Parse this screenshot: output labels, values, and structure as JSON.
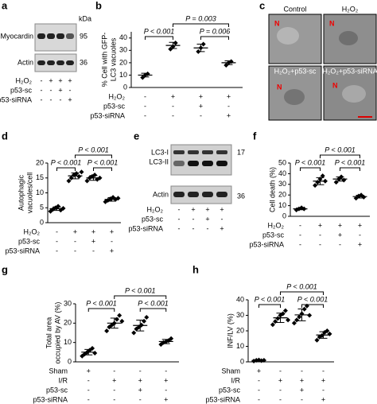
{
  "panel_letters": [
    "a",
    "b",
    "c",
    "d",
    "e",
    "f",
    "g",
    "h"
  ],
  "blots": [
    {
      "bands": [
        "Myocardin",
        "Actin"
      ],
      "unit": "kDa",
      "sizes": [
        95,
        36
      ],
      "treatments": [
        {
          "name": "H₂O₂",
          "marks": [
            "-",
            "+",
            "+",
            "+"
          ]
        },
        {
          "name": "p53-sc",
          "marks": [
            "-",
            "-",
            "+",
            "-"
          ]
        },
        {
          "name": "p53-siRNA",
          "marks": [
            "-",
            "-",
            "-",
            "+"
          ]
        }
      ]
    },
    {
      "bands": [
        "LC3-I",
        "LC3-II",
        "Actin"
      ],
      "sizes": [
        17,
        36
      ],
      "treatments": [
        {
          "name": "H₂O₂",
          "marks": [
            "-",
            "+",
            "+",
            "+"
          ]
        },
        {
          "name": "p53-sc",
          "marks": [
            "-",
            "-",
            "+",
            "-"
          ]
        },
        {
          "name": "p53-siRNA",
          "marks": [
            "-",
            "-",
            "-",
            "+"
          ]
        }
      ]
    }
  ],
  "micrographs": {
    "titles": [
      "Control",
      "H₂O₂",
      "H₂O₂+p53-sc",
      "H₂O₂+p53-siRNA"
    ],
    "nucleus_marks": [
      "N",
      "N",
      "N",
      "N"
    ]
  },
  "chart_data": [
    {
      "type": "dot",
      "ylabel": [
        "% Cell with GFP-",
        "LC3 vacuoles"
      ],
      "ylim": [
        0,
        45
      ],
      "yticks": [
        0,
        10,
        20,
        30,
        40
      ],
      "groups": [
        {
          "points": [
            8,
            10,
            11
          ],
          "mean": 10,
          "sd": 1.5
        },
        {
          "points": [
            31,
            33,
            36
          ],
          "mean": 34,
          "sd": 2.5
        },
        {
          "points": [
            29,
            32,
            35
          ],
          "mean": 32,
          "sd": 3
        },
        {
          "points": [
            18,
            20,
            21
          ],
          "mean": 20,
          "sd": 1.5
        }
      ],
      "annotations": [
        "P < 0.001",
        "P = 0.006",
        "P = 0.003"
      ],
      "treatments": [
        {
          "name": "H₂O₂",
          "marks": [
            "-",
            "+",
            "+",
            "+"
          ]
        },
        {
          "name": "p53-sc",
          "marks": [
            "-",
            "-",
            "+",
            "-"
          ]
        },
        {
          "name": "p53-siRNA",
          "marks": [
            "-",
            "-",
            "-",
            "+"
          ]
        }
      ]
    },
    {
      "type": "dot",
      "ylabel": [
        "Autophagic",
        "vacuoles/cell"
      ],
      "ylim": [
        0,
        20
      ],
      "yticks": [
        0,
        5,
        10,
        15,
        20
      ],
      "groups": [
        {
          "points": [
            3.8,
            4.5,
            5,
            5.5,
            4.2,
            4.8
          ],
          "mean": 4.7,
          "sd": 0.6
        },
        {
          "points": [
            14,
            15,
            16,
            16.5,
            15.5,
            17
          ],
          "mean": 15.7,
          "sd": 1
        },
        {
          "points": [
            14,
            15,
            15.5,
            16,
            14.5,
            15
          ],
          "mean": 15,
          "sd": 0.8
        },
        {
          "points": [
            7,
            7.5,
            8,
            8.5,
            7.8,
            8.2
          ],
          "mean": 7.8,
          "sd": 0.6
        }
      ],
      "annotations": [
        "P < 0.001",
        "P < 0.001",
        "P < 0.001"
      ],
      "treatments": [
        {
          "name": "H₂O₂",
          "marks": [
            "-",
            "+",
            "+",
            "+"
          ]
        },
        {
          "name": "p53-sc",
          "marks": [
            "-",
            "-",
            "+",
            "-"
          ]
        },
        {
          "name": "p53-siRNA",
          "marks": [
            "-",
            "-",
            "-",
            "+"
          ]
        }
      ]
    },
    {
      "type": "dot",
      "ylabel": [
        "Cell death (%)"
      ],
      "ylim": [
        0,
        50
      ],
      "yticks": [
        0,
        10,
        20,
        30,
        40,
        50
      ],
      "groups": [
        {
          "points": [
            6,
            7,
            8,
            7
          ],
          "mean": 7,
          "sd": 0.8
        },
        {
          "points": [
            29,
            32,
            35,
            38,
            33
          ],
          "mean": 33,
          "sd": 3.3
        },
        {
          "points": [
            32,
            35,
            37,
            34
          ],
          "mean": 35,
          "sd": 2
        },
        {
          "points": [
            17,
            19,
            20,
            18
          ],
          "mean": 18.5,
          "sd": 1.3
        }
      ],
      "annotations": [
        "P < 0.001",
        "P < 0.001",
        "P < 0.001"
      ],
      "treatments": [
        {
          "name": "H₂O₂",
          "marks": [
            "-",
            "+",
            "+",
            "+"
          ]
        },
        {
          "name": "p53-sc",
          "marks": [
            "-",
            "-",
            "+",
            "-"
          ]
        },
        {
          "name": "p53-siRNA",
          "marks": [
            "-",
            "-",
            "-",
            "+"
          ]
        }
      ]
    },
    {
      "type": "dot",
      "ylabel": [
        "Total area",
        "occupied by AV (%)"
      ],
      "ylim": [
        0,
        30
      ],
      "yticks": [
        0,
        10,
        20,
        30
      ],
      "groups": [
        {
          "points": [
            3,
            4,
            5,
            6,
            7,
            4.5
          ],
          "mean": 5,
          "sd": 1.4
        },
        {
          "points": [
            16,
            18,
            19,
            20,
            22,
            24,
            21
          ],
          "mean": 20,
          "sd": 2.6
        },
        {
          "points": [
            15,
            17,
            18,
            19,
            21,
            23
          ],
          "mean": 18.8,
          "sd": 2.8
        },
        {
          "points": [
            9,
            10,
            10.5,
            11,
            12
          ],
          "mean": 10.5,
          "sd": 1.1
        }
      ],
      "annotations": [
        "P < 0.001",
        "P < 0.001",
        "P < 0.001"
      ],
      "treatments": [
        {
          "name": "Sham",
          "marks": [
            "+",
            "-",
            "-",
            "-"
          ]
        },
        {
          "name": "I/R",
          "marks": [
            "-",
            "+",
            "+",
            "+"
          ]
        },
        {
          "name": "p53-sc",
          "marks": [
            "-",
            "-",
            "+",
            "-"
          ]
        },
        {
          "name": "p53-siRNA",
          "marks": [
            "-",
            "-",
            "-",
            "+"
          ]
        }
      ]
    },
    {
      "type": "dot",
      "ylabel": [
        "INF/LV (%)"
      ],
      "ylim": [
        0,
        40
      ],
      "yticks": [
        0,
        10,
        20,
        30,
        40
      ],
      "groups": [
        {
          "points": [
            0.5,
            1,
            1.2,
            0.8,
            1
          ],
          "mean": 0.9,
          "sd": 0.3
        },
        {
          "points": [
            24,
            26,
            28,
            30,
            31,
            33,
            27
          ],
          "mean": 28.4,
          "sd": 3
        },
        {
          "points": [
            25,
            27,
            29,
            31,
            34,
            36,
            30
          ],
          "mean": 30.3,
          "sd": 3.8
        },
        {
          "points": [
            14,
            16,
            17,
            19,
            20,
            18
          ],
          "mean": 17.3,
          "sd": 2.1
        }
      ],
      "annotations": [
        "P < 0.001",
        "P < 0.001",
        "P < 0.001"
      ],
      "treatments": [
        {
          "name": "Sham",
          "marks": [
            "+",
            "-",
            "-",
            "-"
          ]
        },
        {
          "name": "I/R",
          "marks": [
            "-",
            "+",
            "+",
            "+"
          ]
        },
        {
          "name": "p53-sc",
          "marks": [
            "-",
            "-",
            "+",
            "-"
          ]
        },
        {
          "name": "p53-siRNA",
          "marks": [
            "-",
            "-",
            "-",
            "+"
          ]
        }
      ]
    }
  ]
}
